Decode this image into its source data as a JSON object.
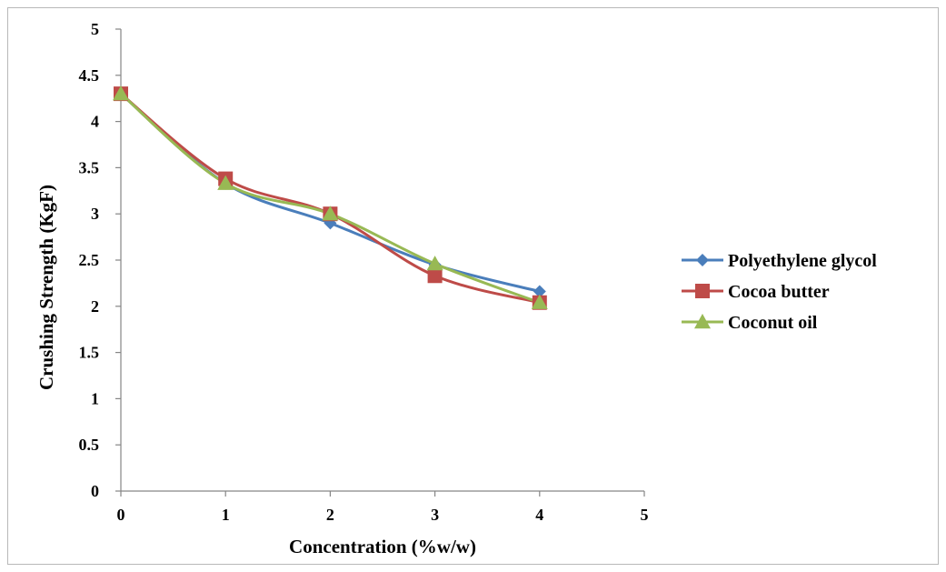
{
  "chart_data": {
    "type": "line",
    "title": "",
    "xlabel": "Concentration (%w/w)",
    "ylabel": "Crushing Strength (KgF)",
    "xlim": [
      0,
      5
    ],
    "ylim": [
      0,
      5
    ],
    "x_ticks": [
      "0",
      "1",
      "2",
      "3",
      "4",
      "5"
    ],
    "y_ticks": [
      "0",
      "0.5",
      "1",
      "1.5",
      "2",
      "2.5",
      "3",
      "3.5",
      "4",
      "4.5",
      "5"
    ],
    "grid": false,
    "legend_position": "right",
    "x": [
      0,
      1,
      2,
      3,
      4
    ],
    "series": [
      {
        "name": "Polyethylene glycol",
        "values": [
          4.3,
          3.33,
          2.9,
          2.45,
          2.16
        ],
        "color": "#4a7ebb",
        "marker": "diamond"
      },
      {
        "name": "Cocoa butter",
        "values": [
          4.3,
          3.38,
          3.0,
          2.33,
          2.04
        ],
        "color": "#be4b48",
        "marker": "square"
      },
      {
        "name": "Coconut oil",
        "values": [
          4.3,
          3.33,
          3.0,
          2.46,
          2.04
        ],
        "color": "#98b954",
        "marker": "triangle"
      }
    ]
  }
}
